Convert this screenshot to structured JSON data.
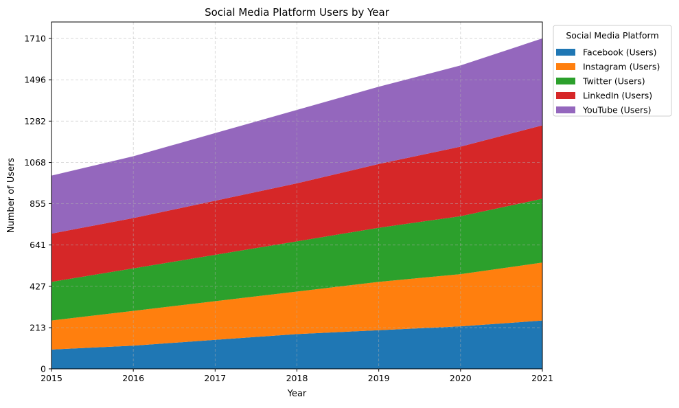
{
  "chart_data": {
    "type": "area",
    "stacked": true,
    "title": "Social Media Platform Users by Year",
    "xlabel": "Year",
    "ylabel": "Number of Users",
    "x": [
      2015,
      2016,
      2017,
      2018,
      2019,
      2020,
      2021
    ],
    "xlim": [
      2015,
      2021
    ],
    "ylim": [
      0,
      1795
    ],
    "yticks": [
      0,
      213,
      427,
      641,
      855,
      1068,
      1282,
      1496,
      1710
    ],
    "grid": true,
    "legend": {
      "title": "Social Media Platform",
      "placement": "outside-top-right"
    },
    "series": [
      {
        "name": "Facebook (Users)",
        "color": "#1f77b4",
        "values": [
          100,
          120,
          150,
          180,
          200,
          220,
          250
        ]
      },
      {
        "name": "Instagram (Users)",
        "color": "#ff7f0e",
        "values": [
          150,
          180,
          200,
          220,
          250,
          270,
          300
        ]
      },
      {
        "name": "Twitter (Users)",
        "color": "#2ca02c",
        "values": [
          200,
          220,
          240,
          260,
          280,
          300,
          330
        ]
      },
      {
        "name": "LinkedIn (Users)",
        "color": "#d62728",
        "values": [
          250,
          260,
          280,
          300,
          330,
          360,
          380
        ]
      },
      {
        "name": "YouTube (Users)",
        "color": "#9467bd",
        "values": [
          300,
          320,
          350,
          380,
          400,
          420,
          450
        ]
      }
    ]
  }
}
